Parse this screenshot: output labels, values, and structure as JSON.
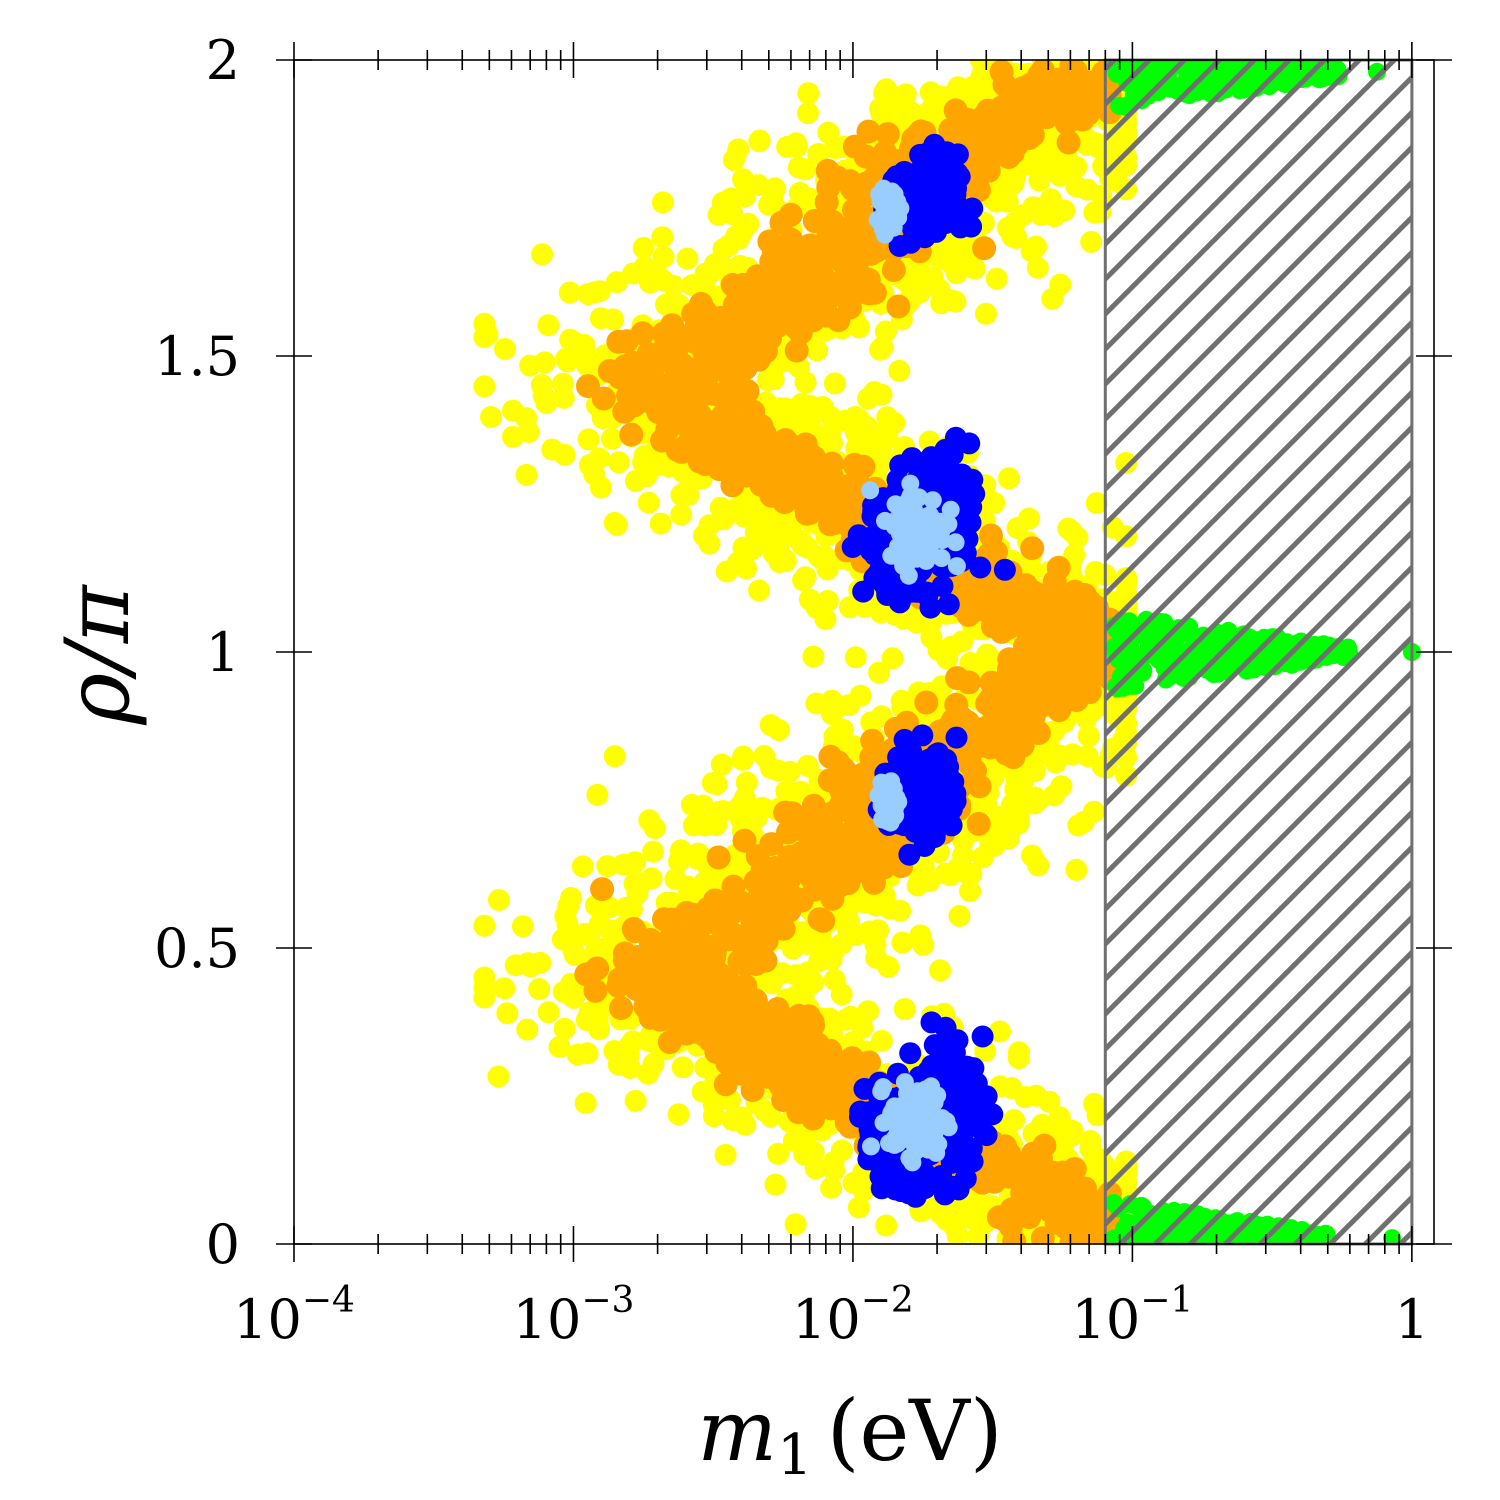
{
  "chart_data": {
    "type": "scatter",
    "title": "",
    "xlabel": {
      "symbol": "m",
      "subscript": "1",
      "unit": "(eV)"
    },
    "ylabel": "ρ/π",
    "xscale": "log",
    "xlim": [
      0.0001,
      1.2
    ],
    "ylim": [
      0,
      2
    ],
    "x_ticks": [
      {
        "value": 0.0001,
        "base": "10",
        "exp": "−4"
      },
      {
        "value": 0.001,
        "base": "10",
        "exp": "−3"
      },
      {
        "value": 0.01,
        "base": "10",
        "exp": "−2"
      },
      {
        "value": 0.1,
        "base": "10",
        "exp": "−1"
      },
      {
        "value": 1,
        "base": "1",
        "exp": ""
      }
    ],
    "y_ticks": [
      {
        "value": 0,
        "label": "0"
      },
      {
        "value": 0.5,
        "label": "0.5"
      },
      {
        "value": 1,
        "label": "1"
      },
      {
        "value": 1.5,
        "label": "1.5"
      },
      {
        "value": 2,
        "label": "2"
      }
    ],
    "excluded_region": {
      "x_from": 0.08,
      "x_to": 1.0,
      "pattern": "hatched",
      "color": "#707070"
    },
    "colors": {
      "yellow": "#ffff00",
      "orange": "#ffa500",
      "blue": "#0000ff",
      "lightblue": "#99ccff",
      "green": "#00ff00"
    },
    "series": [
      {
        "name": "yellow",
        "color": "#ffff00",
        "bands": [
          {
            "rho": [
              0.0,
              0.2
            ],
            "x": [
              0.0085,
              0.09
            ]
          },
          {
            "rho": [
              0.2,
              0.5
            ],
            "x": [
              0.0005,
              0.03
            ]
          },
          {
            "rho": [
              0.5,
              0.8
            ],
            "x": [
              0.0005,
              0.02
            ]
          },
          {
            "rho": [
              0.8,
              1.2
            ],
            "x": [
              0.008,
              0.09
            ]
          },
          {
            "rho": [
              1.2,
              1.5
            ],
            "x": [
              0.0005,
              0.03
            ]
          },
          {
            "rho": [
              1.5,
              1.8
            ],
            "x": [
              0.0005,
              0.02
            ]
          },
          {
            "rho": [
              1.8,
              2.0
            ],
            "x": [
              0.0085,
              0.09
            ]
          }
        ]
      },
      {
        "name": "orange",
        "color": "#ffa500",
        "path": [
          [
            0.08,
            0.0
          ],
          [
            0.05,
            0.1
          ],
          [
            0.02,
            0.17
          ],
          [
            0.012,
            0.22
          ],
          [
            0.008,
            0.27
          ],
          [
            0.005,
            0.33
          ],
          [
            0.003,
            0.4
          ],
          [
            0.0021,
            0.45
          ],
          [
            0.003,
            0.52
          ],
          [
            0.005,
            0.58
          ],
          [
            0.008,
            0.64
          ],
          [
            0.011,
            0.7
          ],
          [
            0.013,
            0.74
          ],
          [
            0.017,
            0.82
          ],
          [
            0.035,
            0.9
          ],
          [
            0.08,
            1.0
          ],
          [
            0.035,
            1.1
          ],
          [
            0.017,
            1.16
          ],
          [
            0.012,
            1.22
          ],
          [
            0.008,
            1.27
          ],
          [
            0.005,
            1.33
          ],
          [
            0.003,
            1.4
          ],
          [
            0.0021,
            1.45
          ],
          [
            0.003,
            1.52
          ],
          [
            0.005,
            1.58
          ],
          [
            0.008,
            1.64
          ],
          [
            0.011,
            1.7
          ],
          [
            0.013,
            1.74
          ],
          [
            0.017,
            1.82
          ],
          [
            0.035,
            1.9
          ],
          [
            0.08,
            1.98
          ]
        ]
      },
      {
        "name": "blue",
        "color": "#0000ff",
        "clusters": [
          {
            "x": 0.014,
            "rho": 0.17,
            "sx": 0.05,
            "sy": 0.04
          },
          {
            "x": 0.02,
            "rho": 0.22,
            "sx": 0.08,
            "sy": 0.06
          },
          {
            "x": 0.018,
            "rho": 0.76,
            "sx": 0.06,
            "sy": 0.04
          },
          {
            "x": 0.014,
            "rho": 1.17,
            "sx": 0.05,
            "sy": 0.04
          },
          {
            "x": 0.02,
            "rho": 1.22,
            "sx": 0.08,
            "sy": 0.06
          },
          {
            "x": 0.018,
            "rho": 1.76,
            "sx": 0.06,
            "sy": 0.04
          }
        ]
      },
      {
        "name": "lightblue",
        "color": "#99ccff",
        "clusters": [
          {
            "x": 0.017,
            "rho": 0.21,
            "sx": 0.05,
            "sy": 0.03
          },
          {
            "x": 0.0135,
            "rho": 0.75,
            "sx": 0.015,
            "sy": 0.015
          },
          {
            "x": 0.017,
            "rho": 1.21,
            "sx": 0.05,
            "sy": 0.03
          },
          {
            "x": 0.0135,
            "rho": 1.75,
            "sx": 0.015,
            "sy": 0.015
          }
        ]
      },
      {
        "name": "green",
        "color": "#00ff00",
        "spikes": [
          {
            "rho_center": 0.01,
            "x_start": 0.085,
            "x_end": 0.5,
            "tip": 0.85
          },
          {
            "rho_center": 1.0,
            "x_start": 0.085,
            "x_end": 0.6,
            "tip": 1.0
          },
          {
            "rho_center": 1.98,
            "x_start": 0.085,
            "x_end": 0.55,
            "tip": 0.75
          }
        ]
      }
    ]
  }
}
